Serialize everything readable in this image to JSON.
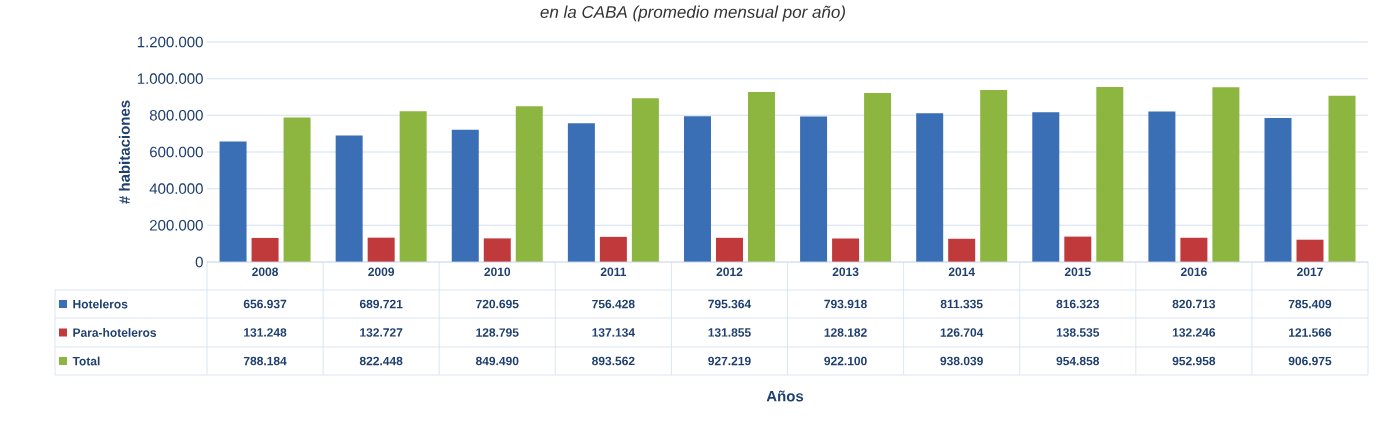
{
  "chart_data": {
    "type": "bar",
    "title": "en la CABA (promedio mensual por año)",
    "annotations": [
      "Años"
    ],
    "ylabel": "# habitaciones",
    "categories": [
      "2008",
      "2009",
      "2010",
      "2011",
      "2012",
      "2013",
      "2014",
      "2015",
      "2016",
      "2017"
    ],
    "series": [
      {
        "name": "Hoteleros",
        "color": "#3a6fb5",
        "values": [
          656937,
          689721,
          720695,
          756428,
          795364,
          793918,
          811335,
          816323,
          820713,
          785409
        ],
        "value_labels": [
          "656.937",
          "689.721",
          "720.695",
          "756.428",
          "795.364",
          "793.918",
          "811.335",
          "816.323",
          "820.713",
          "785.409"
        ]
      },
      {
        "name": "Para-hoteleros",
        "color": "#c0393b",
        "values": [
          131248,
          132727,
          128795,
          137134,
          131855,
          128182,
          126704,
          138535,
          132246,
          121566
        ],
        "value_labels": [
          "131.248",
          "132.727",
          "128.795",
          "137.134",
          "131.855",
          "128.182",
          "126.704",
          "138.535",
          "132.246",
          "121.566"
        ]
      },
      {
        "name": "Total",
        "color": "#8db640",
        "values": [
          788184,
          822448,
          849490,
          893562,
          927219,
          922100,
          938039,
          954858,
          952958,
          906975
        ],
        "value_labels": [
          "788.184",
          "822.448",
          "849.490",
          "893.562",
          "927.219",
          "922.100",
          "938.039",
          "954.858",
          "952.958",
          "906.975"
        ]
      }
    ],
    "ylim": [
      0,
      1200000
    ],
    "yticks": [
      0,
      {
        "value": 200000,
        "label": "200.000"
      },
      {
        "value": 400000,
        "label": "400.000"
      },
      {
        "value": 600000,
        "label": "600.000"
      },
      {
        "value": 800000,
        "label": "800.000"
      },
      {
        "value": 1000000,
        "label": "1.000.000"
      },
      {
        "value": 1200000,
        "label": "1.200.000"
      }
    ],
    "grid": "y",
    "legend": "bottom"
  }
}
